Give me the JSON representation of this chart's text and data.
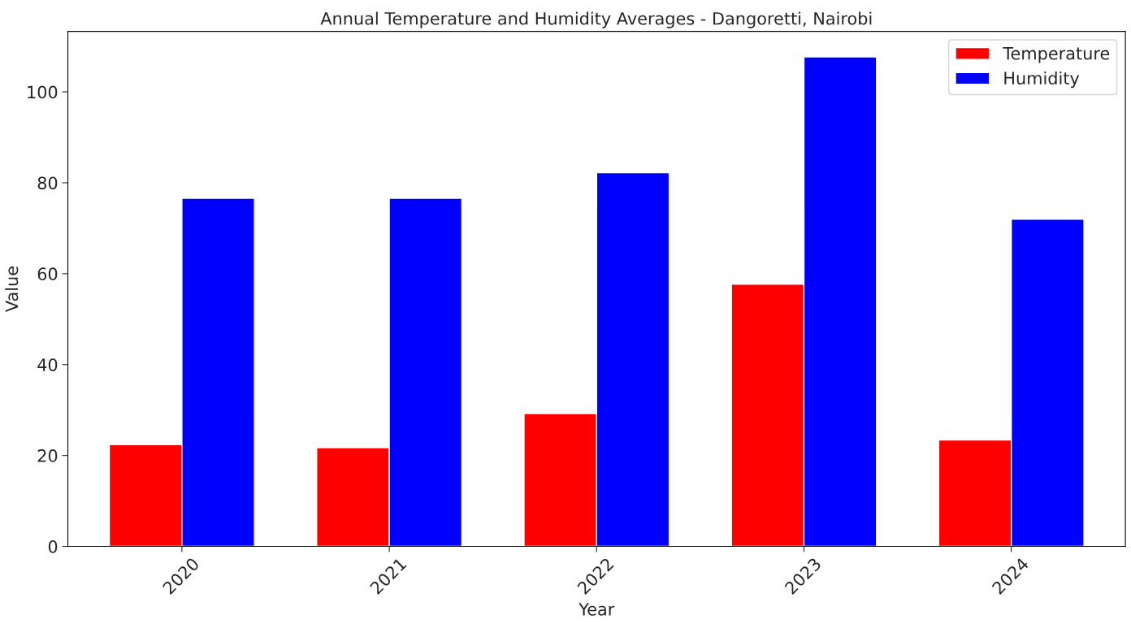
{
  "chart_data": {
    "type": "bar",
    "title": "Annual Temperature and Humidity Averages - Dangoretti, Nairobi",
    "xlabel": "Year",
    "ylabel": "Value",
    "categories": [
      "2020",
      "2021",
      "2022",
      "2023",
      "2024"
    ],
    "series": [
      {
        "name": "Temperature",
        "color": "#ff0000",
        "values": [
          22.4,
          21.7,
          29.2,
          57.7,
          23.4
        ]
      },
      {
        "name": "Humidity",
        "color": "#0000ff",
        "values": [
          76.6,
          76.6,
          82.2,
          107.7,
          72.0
        ]
      }
    ],
    "ylim": [
      0,
      113.3
    ],
    "yticks": [
      0,
      20,
      40,
      60,
      80,
      100
    ],
    "grid": false,
    "legend": "top right"
  }
}
